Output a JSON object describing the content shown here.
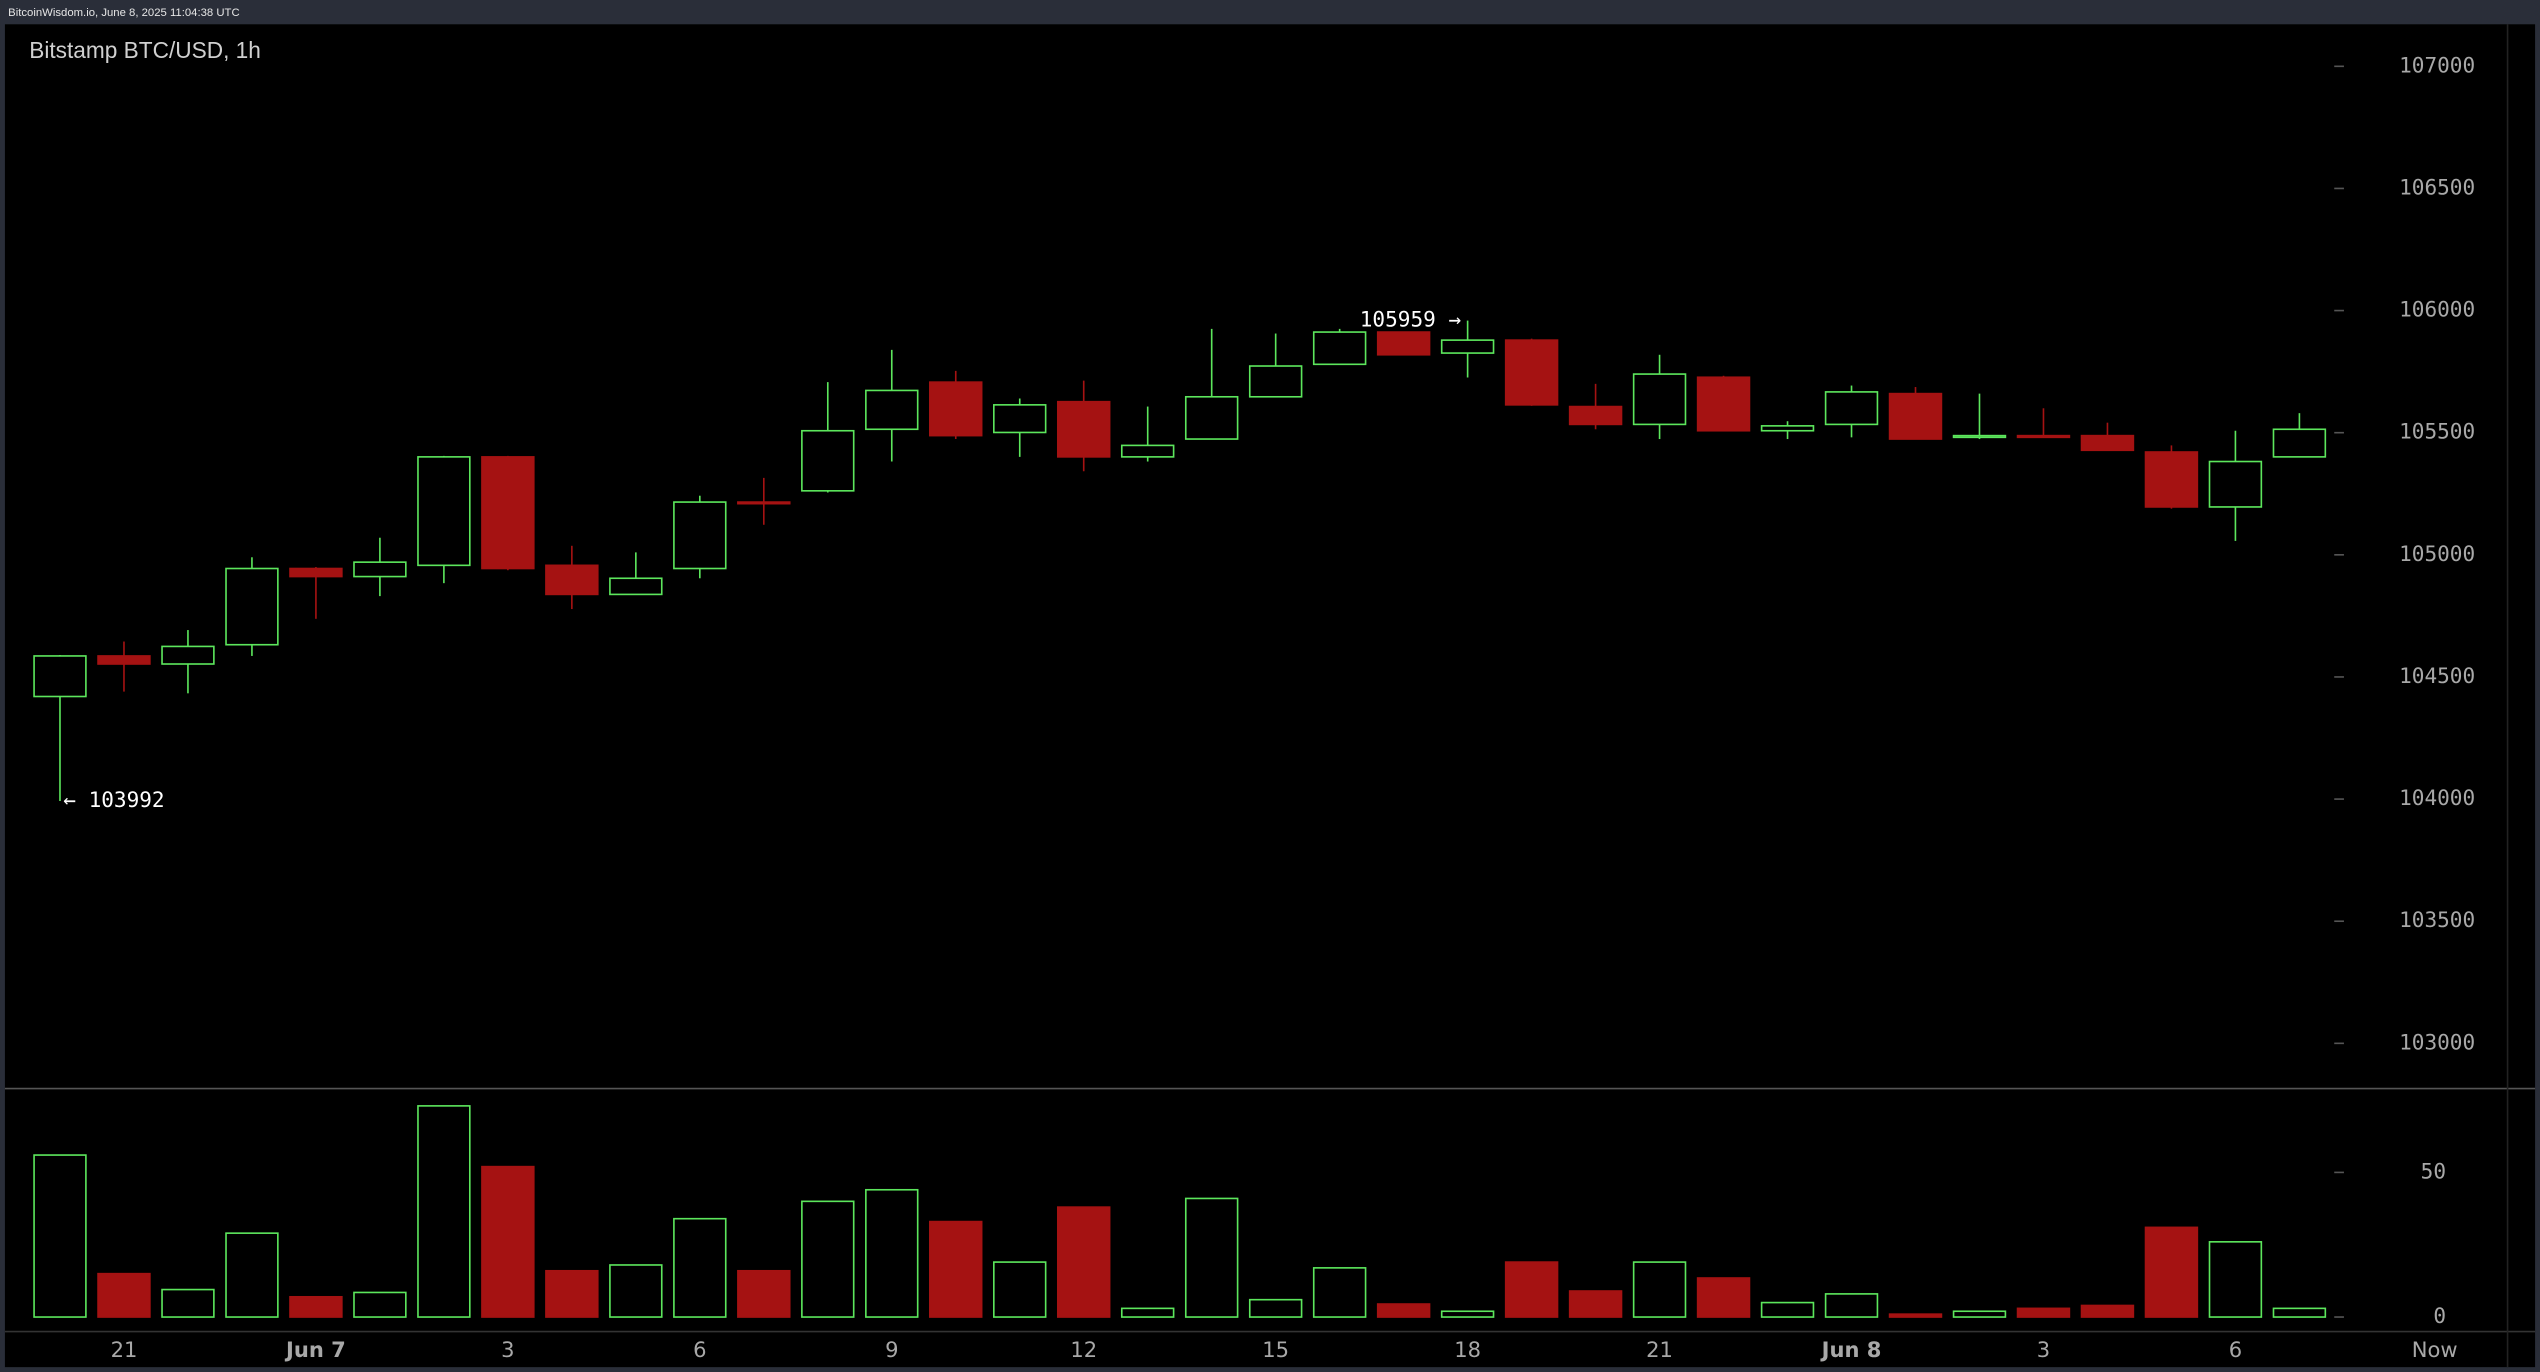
{
  "header": "BitcoinWisdom.io, June 8, 2025 11:04:38 UTC",
  "chart_data": {
    "type": "candlestick",
    "title": "Bitstamp BTC/USD, 1h",
    "categories": [
      null,
      "21",
      null,
      null,
      "Jun 7",
      null,
      null,
      "3",
      null,
      null,
      "6",
      null,
      null,
      "9",
      null,
      null,
      "12",
      null,
      null,
      "15",
      null,
      null,
      "18",
      null,
      null,
      "21",
      null,
      null,
      "Jun 8",
      null,
      null,
      "3",
      null,
      null,
      "6",
      null
    ],
    "now_label": "Now",
    "open": [
      104420,
      104586,
      104553,
      104632,
      104944,
      104911,
      104957,
      105401,
      104957,
      104838,
      104944,
      105216,
      105262,
      105514,
      105707,
      105501,
      105627,
      105401,
      105474,
      105647,
      105780,
      105912,
      105826,
      105879,
      105607,
      105534,
      105727,
      105508,
      105534,
      105660,
      105481,
      105488,
      105488,
      105421,
      105196,
      105401
    ],
    "high": [
      104590,
      104645,
      104692,
      104990,
      104950,
      105070,
      105405,
      105405,
      105037,
      105010,
      105242,
      105315,
      105707,
      105839,
      105753,
      105640,
      105713,
      105607,
      105925,
      105906,
      105925,
      105912,
      105959,
      105885,
      105700,
      105819,
      105733,
      105547,
      105693,
      105687,
      105660,
      105600,
      105541,
      105448,
      105508,
      105580
    ],
    "low": [
      103992,
      104440,
      104433,
      104586,
      104738,
      104831,
      104884,
      104937,
      104778,
      104838,
      104904,
      105123,
      105255,
      105382,
      105474,
      105401,
      105342,
      105382,
      105474,
      105647,
      105780,
      105819,
      105726,
      105610,
      105514,
      105474,
      105508,
      105474,
      105481,
      105474,
      105474,
      105481,
      105428,
      105189,
      105057,
      105401
    ],
    "close": [
      104586,
      104553,
      104625,
      104944,
      104911,
      104970,
      105401,
      104944,
      104838,
      104904,
      105216,
      105210,
      105508,
      105673,
      105488,
      105614,
      105401,
      105448,
      105647,
      105773,
      105912,
      105819,
      105879,
      105614,
      105534,
      105740,
      105508,
      105528,
      105667,
      105474,
      105488,
      105481,
      105428,
      105196,
      105382,
      105514
    ],
    "rising_color": "#5ce65c",
    "falling_color": "#a51212",
    "ylim": [
      102815,
      107172
    ],
    "yticks": [
      103000,
      103500,
      104000,
      104500,
      105000,
      105500,
      106000,
      106500,
      107000
    ],
    "annotations": [
      {
        "value": 103992,
        "label": "← 103992"
      },
      {
        "value": 105959,
        "label": "105959 →"
      }
    ],
    "volume": {
      "values": [
        56,
        15,
        9.5,
        29,
        7,
        8.5,
        73,
        52,
        16,
        18,
        34,
        16,
        40,
        44,
        33,
        19,
        38,
        3,
        41,
        6,
        17,
        4.5,
        2,
        19,
        9,
        19,
        13.5,
        5,
        8,
        1,
        2,
        3,
        4,
        31,
        26,
        3
      ],
      "ylim": [
        -5,
        79
      ],
      "yticks": [
        0,
        50
      ]
    }
  }
}
